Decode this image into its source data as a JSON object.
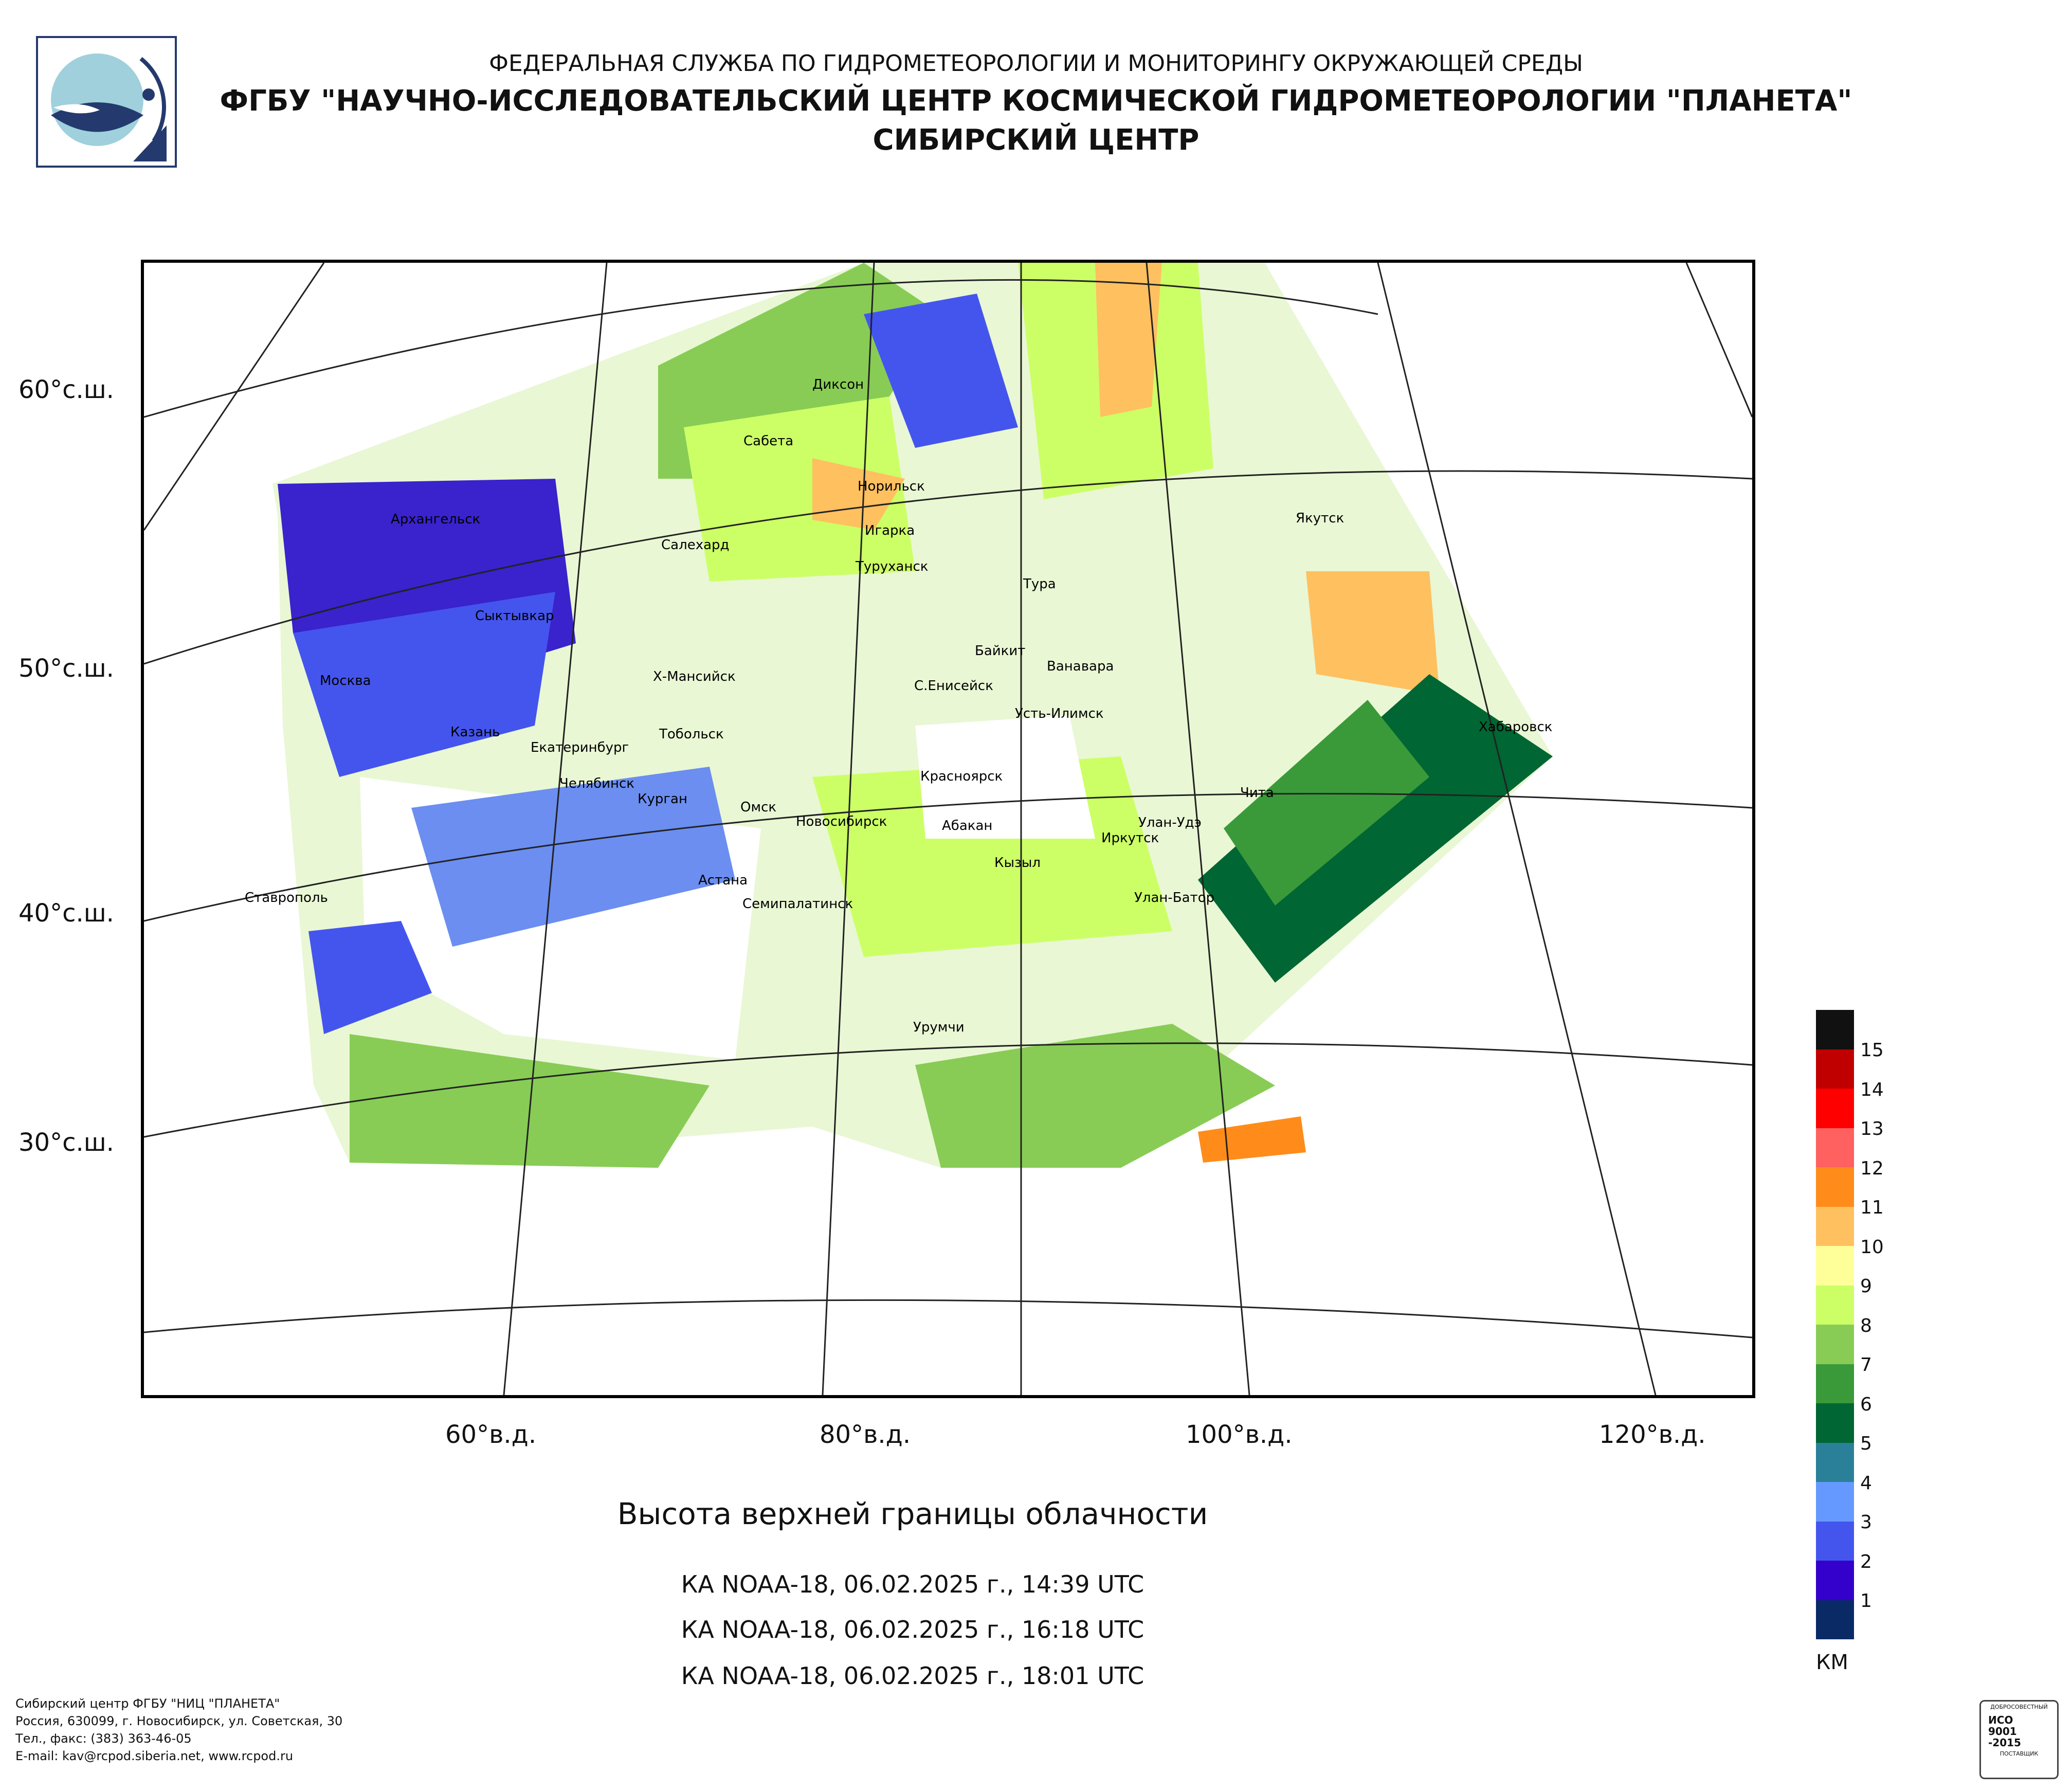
{
  "header": {
    "line1": "ФЕДЕРАЛЬНАЯ СЛУЖБА ПО ГИДРОМЕТЕОРОЛОГИИ И МОНИТОРИНГУ ОКРУЖАЮЩЕЙ СРЕДЫ",
    "line2": "ФГБУ \"НАУЧНО-ИССЛЕДОВАТЕЛЬСКИЙ ЦЕНТР КОСМИЧЕСКОЙ ГИДРОМЕТЕОРОЛОГИИ \"ПЛАНЕТА\"",
    "line3": "СИБИРСКИЙ ЦЕНТР"
  },
  "axes": {
    "lat": [
      "60°с.ш.",
      "50°с.ш.",
      "40°с.ш.",
      "30°с.ш."
    ],
    "lon": [
      "60°в.д.",
      "80°в.д.",
      "100°в.д.",
      "120°в.д."
    ]
  },
  "cities": [
    "Диксон",
    "Сабета",
    "Норильск",
    "Архангельск",
    "Салехард",
    "Игарка",
    "Туруханск",
    "Якутск",
    "Тура",
    "Сыктывкар",
    "Байкит",
    "Ванавара",
    "Х-Мансийск",
    "С.Енисейск",
    "Москва",
    "Усть-Илимск",
    "Хабаровск",
    "Казань",
    "Тобольск",
    "Екатеринбург",
    "Челябинск",
    "Красноярск",
    "Курган",
    "Чита",
    "Омск",
    "Новосибирск",
    "Улан-Удэ",
    "Абакан",
    "Иркутск",
    "Кызыл",
    "Астана",
    "Улан-Батор",
    "Ставрополь",
    "Семипалатинск",
    "Урумчи"
  ],
  "title": "Высота верхней границы облачности",
  "passes": [
    "КА NOAA-18, 06.02.2025 г., 14:39 UTC",
    "КА NOAA-18, 06.02.2025 г., 16:18 UTC",
    "КА NOAA-18, 06.02.2025 г., 18:01 UTC"
  ],
  "legend": {
    "unit": "КМ",
    "levels": [
      "15",
      "14",
      "13",
      "12",
      "11",
      "10",
      "9",
      "8",
      "7",
      "6",
      "5",
      "4",
      "3",
      "2",
      "1"
    ],
    "colors": [
      "#111111",
      "#c00000",
      "#ff0000",
      "#ff6060",
      "#ff8c1a",
      "#ffc060",
      "#ffff99",
      "#ccff66",
      "#88cc55",
      "#3a9a3a",
      "#006633",
      "#2a8099",
      "#6699ff",
      "#4455ee",
      "#3300cc",
      "#0a2a66"
    ]
  },
  "footer": [
    "Сибирский центр ФГБУ \"НИЦ \"ПЛАНЕТА\"",
    "Россия, 630099, г. Новосибирск, ул. Советская, 30",
    "Тел., факс: (383) 363-46-05",
    "E-mail: kav@rcpod.siberia.net, www.rcpod.ru"
  ],
  "iso_badge": {
    "top": "ДОБРОСОВЕСТНЫЙ",
    "l1": "ИСО",
    "l2": "9001",
    "l3": "-2015",
    "bottom": "ПОСТАВЩИК"
  }
}
